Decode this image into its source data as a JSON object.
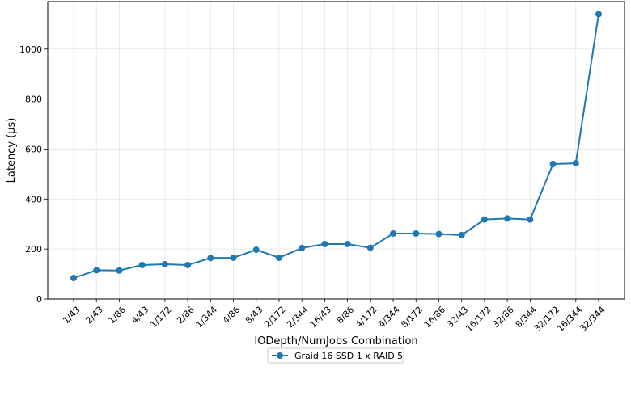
{
  "chart_data": {
    "type": "line",
    "xlabel": "IODepth/NumJobs Combination",
    "ylabel": "Latency (µs)",
    "categories": [
      "1/43",
      "2/43",
      "1/86",
      "4/43",
      "1/172",
      "2/86",
      "1/344",
      "4/86",
      "8/43",
      "2/172",
      "2/344",
      "16/43",
      "8/86",
      "4/172",
      "4/344",
      "8/172",
      "16/86",
      "32/43",
      "16/172",
      "32/86",
      "8/344",
      "32/172",
      "16/344",
      "32/344"
    ],
    "series": [
      {
        "name": "Graid 16 SSD 1 x RAID 5",
        "color": "#1f77b4",
        "values": [
          84,
          115,
          114,
          136,
          139,
          136,
          164,
          165,
          197,
          165,
          204,
          220,
          220,
          205,
          262,
          262,
          260,
          256,
          318,
          322,
          318,
          540,
          543,
          1140
        ]
      }
    ],
    "ylim": [
      0,
      1190
    ],
    "yticks": [
      0,
      200,
      400,
      600,
      800,
      1000
    ],
    "grid": true,
    "legend_position": "bottom-center"
  }
}
